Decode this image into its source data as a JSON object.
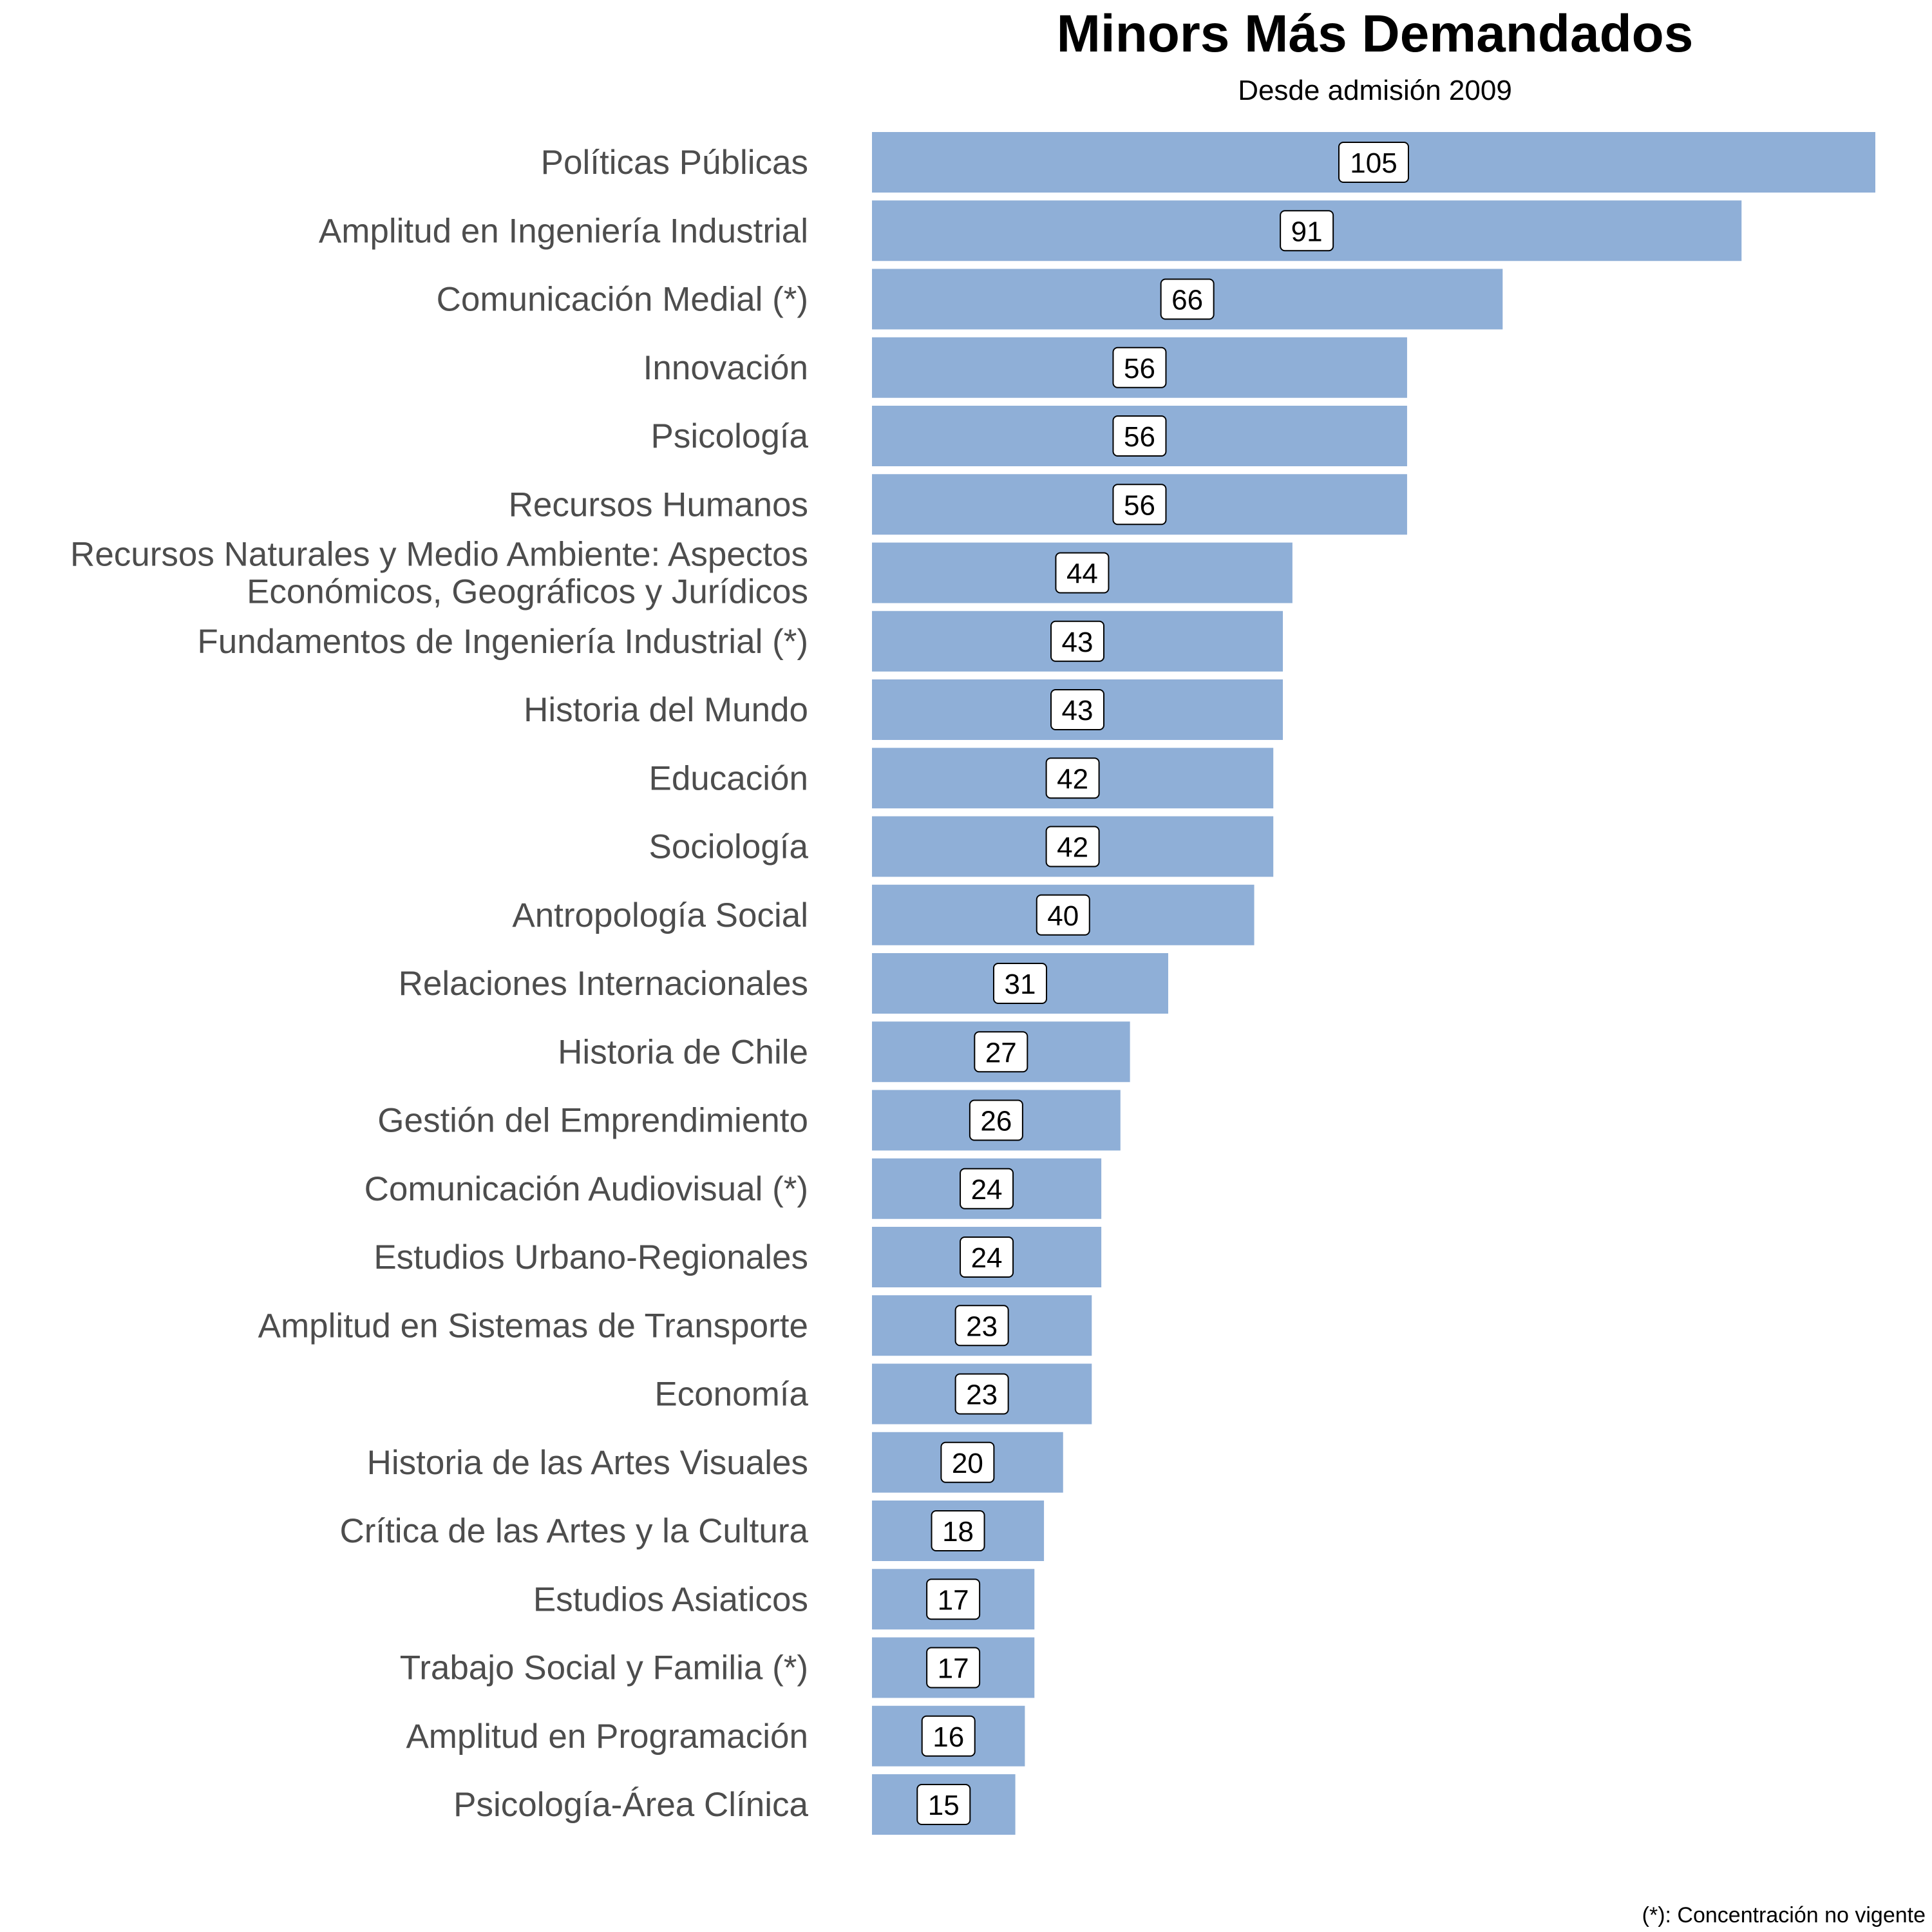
{
  "chart_data": {
    "type": "bar",
    "orientation": "horizontal",
    "title": "Minors Más Demandados",
    "subtitle": "Desde admisión 2009",
    "xlabel": "",
    "ylabel": "",
    "grid": false,
    "categories": [
      "Políticas Públicas",
      "Amplitud en Ingeniería Industrial",
      "Comunicación Medial (*)",
      "Innovación",
      "Psicología",
      "Recursos Humanos",
      "Recursos Naturales y Medio Ambiente: Aspectos\nEconómicos, Geográficos y Jurídicos",
      "Fundamentos de Ingeniería Industrial (*)",
      "Historia del Mundo",
      "Educación",
      "Sociología",
      "Antropología Social",
      "Relaciones Internacionales",
      "Historia de Chile",
      "Gestión del Emprendimiento",
      "Comunicación Audiovisual (*)",
      "Estudios Urbano-Regionales",
      "Amplitud en Sistemas de Transporte",
      "Economía",
      "Historia de las Artes Visuales",
      "Crítica de las Artes y la Cultura",
      "Estudios Asiaticos",
      "Trabajo Social y Familia (*)",
      "Amplitud en Programación",
      "Psicología-Área Clínica"
    ],
    "values": [
      105,
      91,
      66,
      56,
      56,
      56,
      44,
      43,
      43,
      42,
      42,
      40,
      31,
      27,
      26,
      24,
      24,
      23,
      23,
      20,
      18,
      17,
      17,
      16,
      15
    ],
    "xlim": [
      0,
      105
    ],
    "bar_color": "#8fafd7",
    "label_box_color": "#ffffff",
    "caption": "(*): Concentración no vigente"
  }
}
